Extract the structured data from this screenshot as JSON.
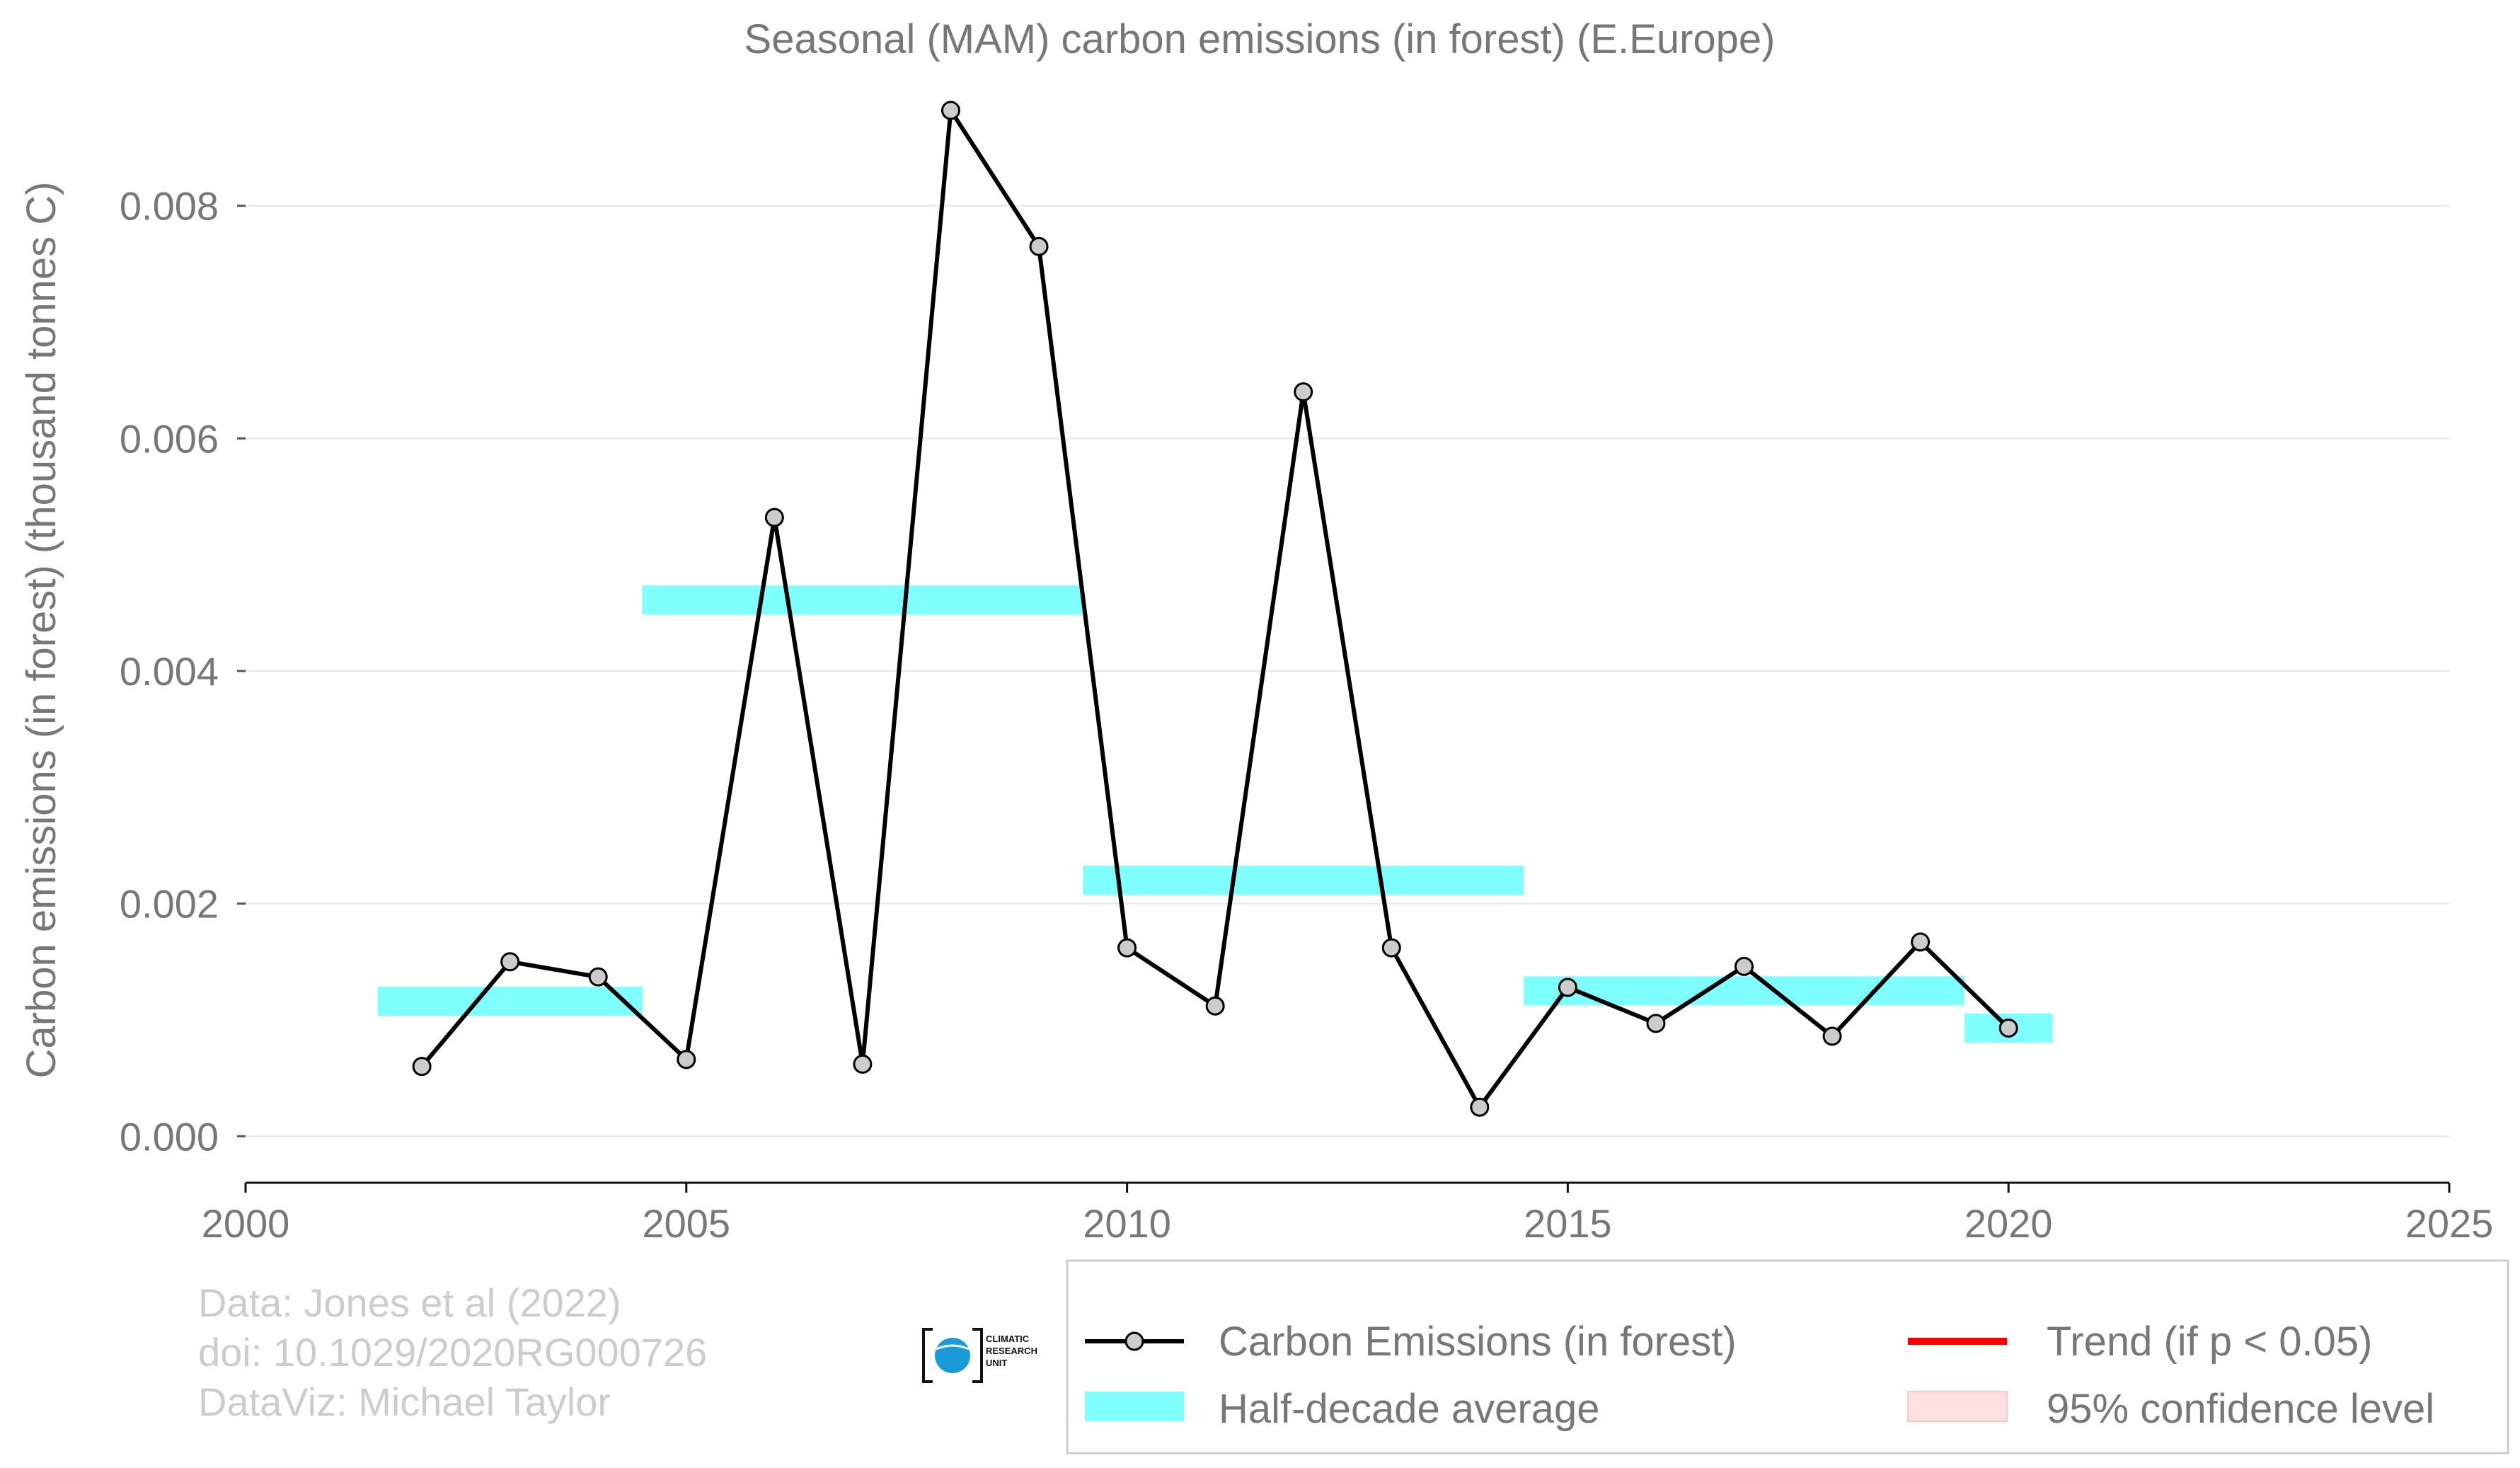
{
  "chart_data": {
    "type": "line",
    "title": "Seasonal (MAM) carbon emissions (in forest) (E.Europe)",
    "xlabel": "",
    "ylabel": "Carbon emissions (in forest) (thousand tonnes C)",
    "xlim": [
      2000,
      2025
    ],
    "ylim": [
      -0.0004,
      0.0091
    ],
    "x_ticks": [
      2000,
      2005,
      2010,
      2015,
      2020,
      2025
    ],
    "x_tick_labels": [
      "2000",
      "2005",
      "2010",
      "2015",
      "2020",
      "2025"
    ],
    "y_ticks": [
      0.0,
      0.002,
      0.004,
      0.006,
      0.008
    ],
    "y_tick_labels": [
      "0.000",
      "0.002",
      "0.004",
      "0.006",
      "0.008"
    ],
    "grid": "horizontal",
    "legend_position": "bottom",
    "series": [
      {
        "name": "Carbon Emissions (in forest)",
        "color": "#000000",
        "marker_fill": "#cccccc",
        "x": [
          2002,
          2003,
          2004,
          2005,
          2006,
          2007,
          2008,
          2009,
          2010,
          2011,
          2012,
          2013,
          2014,
          2015,
          2016,
          2017,
          2018,
          2019,
          2020
        ],
        "y": [
          0.0006,
          0.0015,
          0.00137,
          0.00066,
          0.00532,
          0.00062,
          0.00882,
          0.00765,
          0.00162,
          0.00112,
          0.0064,
          0.00162,
          0.00025,
          0.00128,
          0.00097,
          0.00146,
          0.00086,
          0.00167,
          0.00093
        ]
      },
      {
        "name": "Half-decade average",
        "color": "#80ffff",
        "segments": [
          {
            "x_start": 2001.5,
            "x_end": 2004.5,
            "y": 0.00116
          },
          {
            "x_start": 2004.5,
            "x_end": 2009.5,
            "y": 0.00461
          },
          {
            "x_start": 2009.5,
            "x_end": 2014.5,
            "y": 0.0022
          },
          {
            "x_start": 2014.5,
            "x_end": 2019.5,
            "y": 0.00125
          },
          {
            "x_start": 2019.5,
            "x_end": 2020.5,
            "y": 0.00093
          }
        ]
      }
    ],
    "legend": [
      {
        "label": "Carbon Emissions (in forest)",
        "kind": "line-marker",
        "color": "#000000"
      },
      {
        "label": "Trend (if p < 0.05)",
        "kind": "line",
        "color": "#ff0000"
      },
      {
        "label": "Half-decade average",
        "kind": "band",
        "color": "#80ffff"
      },
      {
        "label": "95% confidence level",
        "kind": "band",
        "color": "#ffe0e0"
      }
    ]
  },
  "credits": {
    "line1": "Data: Jones et al (2022)",
    "line2": "doi: 10.1029/2020RG000726",
    "line3": "DataViz: Michael Taylor"
  },
  "logo": {
    "line1": "CLIMATIC",
    "line2": "RESEARCH",
    "line3": "UNIT"
  }
}
